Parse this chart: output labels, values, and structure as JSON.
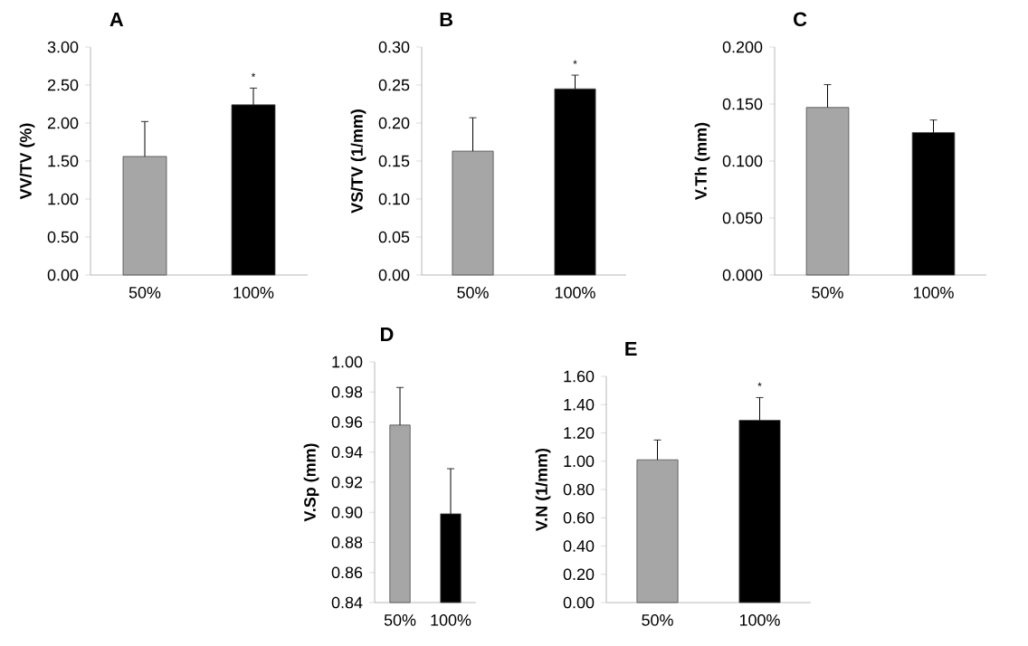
{
  "chart_data": [
    {
      "type": "bar",
      "title": "A",
      "ylabel": "VV/TV (%)",
      "categories": [
        "50%",
        "100%"
      ],
      "values": [
        1.56,
        2.24
      ],
      "colors": [
        "#a6a6a6",
        "#000000"
      ],
      "errors": [
        [
          1.56,
          2.02
        ],
        [
          2.24,
          2.46
        ]
      ],
      "ylim": [
        0,
        3
      ],
      "yticks": [
        {
          "value": 0,
          "label": "0.00"
        },
        {
          "value": 0.5,
          "label": "0.50"
        },
        {
          "value": 1,
          "label": "1.00"
        },
        {
          "value": 1.5,
          "label": "1.50"
        },
        {
          "value": 2,
          "label": "2.00"
        },
        {
          "value": 2.5,
          "label": "2.50"
        },
        {
          "value": 3,
          "label": "3.00"
        }
      ],
      "annotations": [
        "*"
      ]
    },
    {
      "type": "bar",
      "title": "B",
      "ylabel": "VS/TV (1/mm)",
      "categories": [
        "50%",
        "100%"
      ],
      "values": [
        0.163,
        0.245
      ],
      "colors": [
        "#a6a6a6",
        "#000000"
      ],
      "errors": [
        [
          0.163,
          0.207
        ],
        [
          0.245,
          0.263
        ]
      ],
      "ylim": [
        0,
        0.3
      ],
      "yticks": [
        {
          "value": 0,
          "label": "0.00"
        },
        {
          "value": 0.05,
          "label": "0.05"
        },
        {
          "value": 0.1,
          "label": "0.10"
        },
        {
          "value": 0.15,
          "label": "0.15"
        },
        {
          "value": 0.2,
          "label": "0.20"
        },
        {
          "value": 0.25,
          "label": "0.25"
        },
        {
          "value": 0.3,
          "label": "0.30"
        }
      ],
      "annotations": [
        "*"
      ]
    },
    {
      "type": "bar",
      "title": "C",
      "ylabel": "V.Th (mm)",
      "categories": [
        "50%",
        "100%"
      ],
      "values": [
        0.147,
        0.125
      ],
      "colors": [
        "#a6a6a6",
        "#000000"
      ],
      "errors": [
        [
          0.147,
          0.167
        ],
        [
          0.125,
          0.136
        ]
      ],
      "ylim": [
        0,
        0.2
      ],
      "yticks": [
        {
          "value": 0,
          "label": "0.000"
        },
        {
          "value": 0.05,
          "label": "0.050"
        },
        {
          "value": 0.1,
          "label": "0.100"
        },
        {
          "value": 0.15,
          "label": "0.150"
        },
        {
          "value": 0.2,
          "label": "0.200"
        }
      ]
    },
    {
      "type": "bar",
      "title": "D",
      "ylabel": "V.Sp (mm)",
      "categories": [
        "50%",
        "100%"
      ],
      "values": [
        0.958,
        0.899
      ],
      "colors": [
        "#a6a6a6",
        "#000000"
      ],
      "errors": [
        [
          0.958,
          0.983
        ],
        [
          0.899,
          0.929
        ]
      ],
      "ylim": [
        0.84,
        1.0
      ],
      "yticks": [
        0.84,
        0.86,
        0.88,
        {
          "value": 0.9,
          "label": "0.90"
        },
        0.92,
        0.94,
        0.96,
        0.98,
        {
          "value": 1,
          "label": "1.00"
        }
      ]
    },
    {
      "type": "bar",
      "title": "E",
      "ylabel": "V.N (1/mm)",
      "categories": [
        "50%",
        "100%"
      ],
      "values": [
        1.01,
        1.29
      ],
      "colors": [
        "#a6a6a6",
        "#000000"
      ],
      "errors": [
        [
          1.01,
          1.15
        ],
        [
          1.29,
          1.45
        ]
      ],
      "ylim": [
        0,
        1.6
      ],
      "yticks": [
        {
          "value": 0,
          "label": "0.00"
        },
        {
          "value": 0.2,
          "label": "0.20"
        },
        {
          "value": 0.4,
          "label": "0.40"
        },
        {
          "value": 0.6,
          "label": "0.60"
        },
        {
          "value": 0.8,
          "label": "0.80"
        },
        {
          "value": 1,
          "label": "1.00"
        },
        {
          "value": 1.2,
          "label": "1.20"
        },
        {
          "value": 1.4,
          "label": "1.40"
        },
        {
          "value": 1.6,
          "label": "1.60"
        }
      ],
      "annotations": [
        "*"
      ]
    }
  ]
}
